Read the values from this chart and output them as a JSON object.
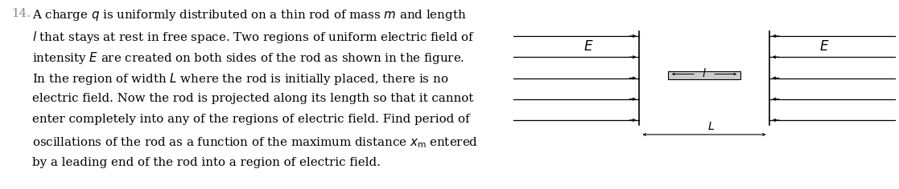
{
  "background_color": "#ffffff",
  "text_color": "#000000",
  "number_label": "14.",
  "paragraph_lines": [
    "A charge $q$ is uniformly distributed on a thin rod of mass $m$ and length",
    "$l$ that stays at rest in free space. Two regions of uniform electric field of",
    "intensity $E$ are created on both sides of the rod as shown in the figure.",
    "In the region of width $L$ where the rod is initially placed, there is no",
    "electric field. Now the rod is projected along its length so that it cannot",
    "enter completely into any of the regions of electric field. Find period of",
    "oscillations of the rod as a function of the maximum distance $x_{\\rm m}$ entered",
    "by a leading end of the rod into a region of electric field."
  ],
  "fig_width": 11.17,
  "fig_height": 2.36,
  "fig_dpi": 100,
  "left_field_label": "$E$",
  "right_field_label": "$E$",
  "rod_label": "$l$",
  "gap_label": "$L$",
  "text_fontsize": 10.8,
  "label_fontsize": 11,
  "number_fontsize": 10.8
}
